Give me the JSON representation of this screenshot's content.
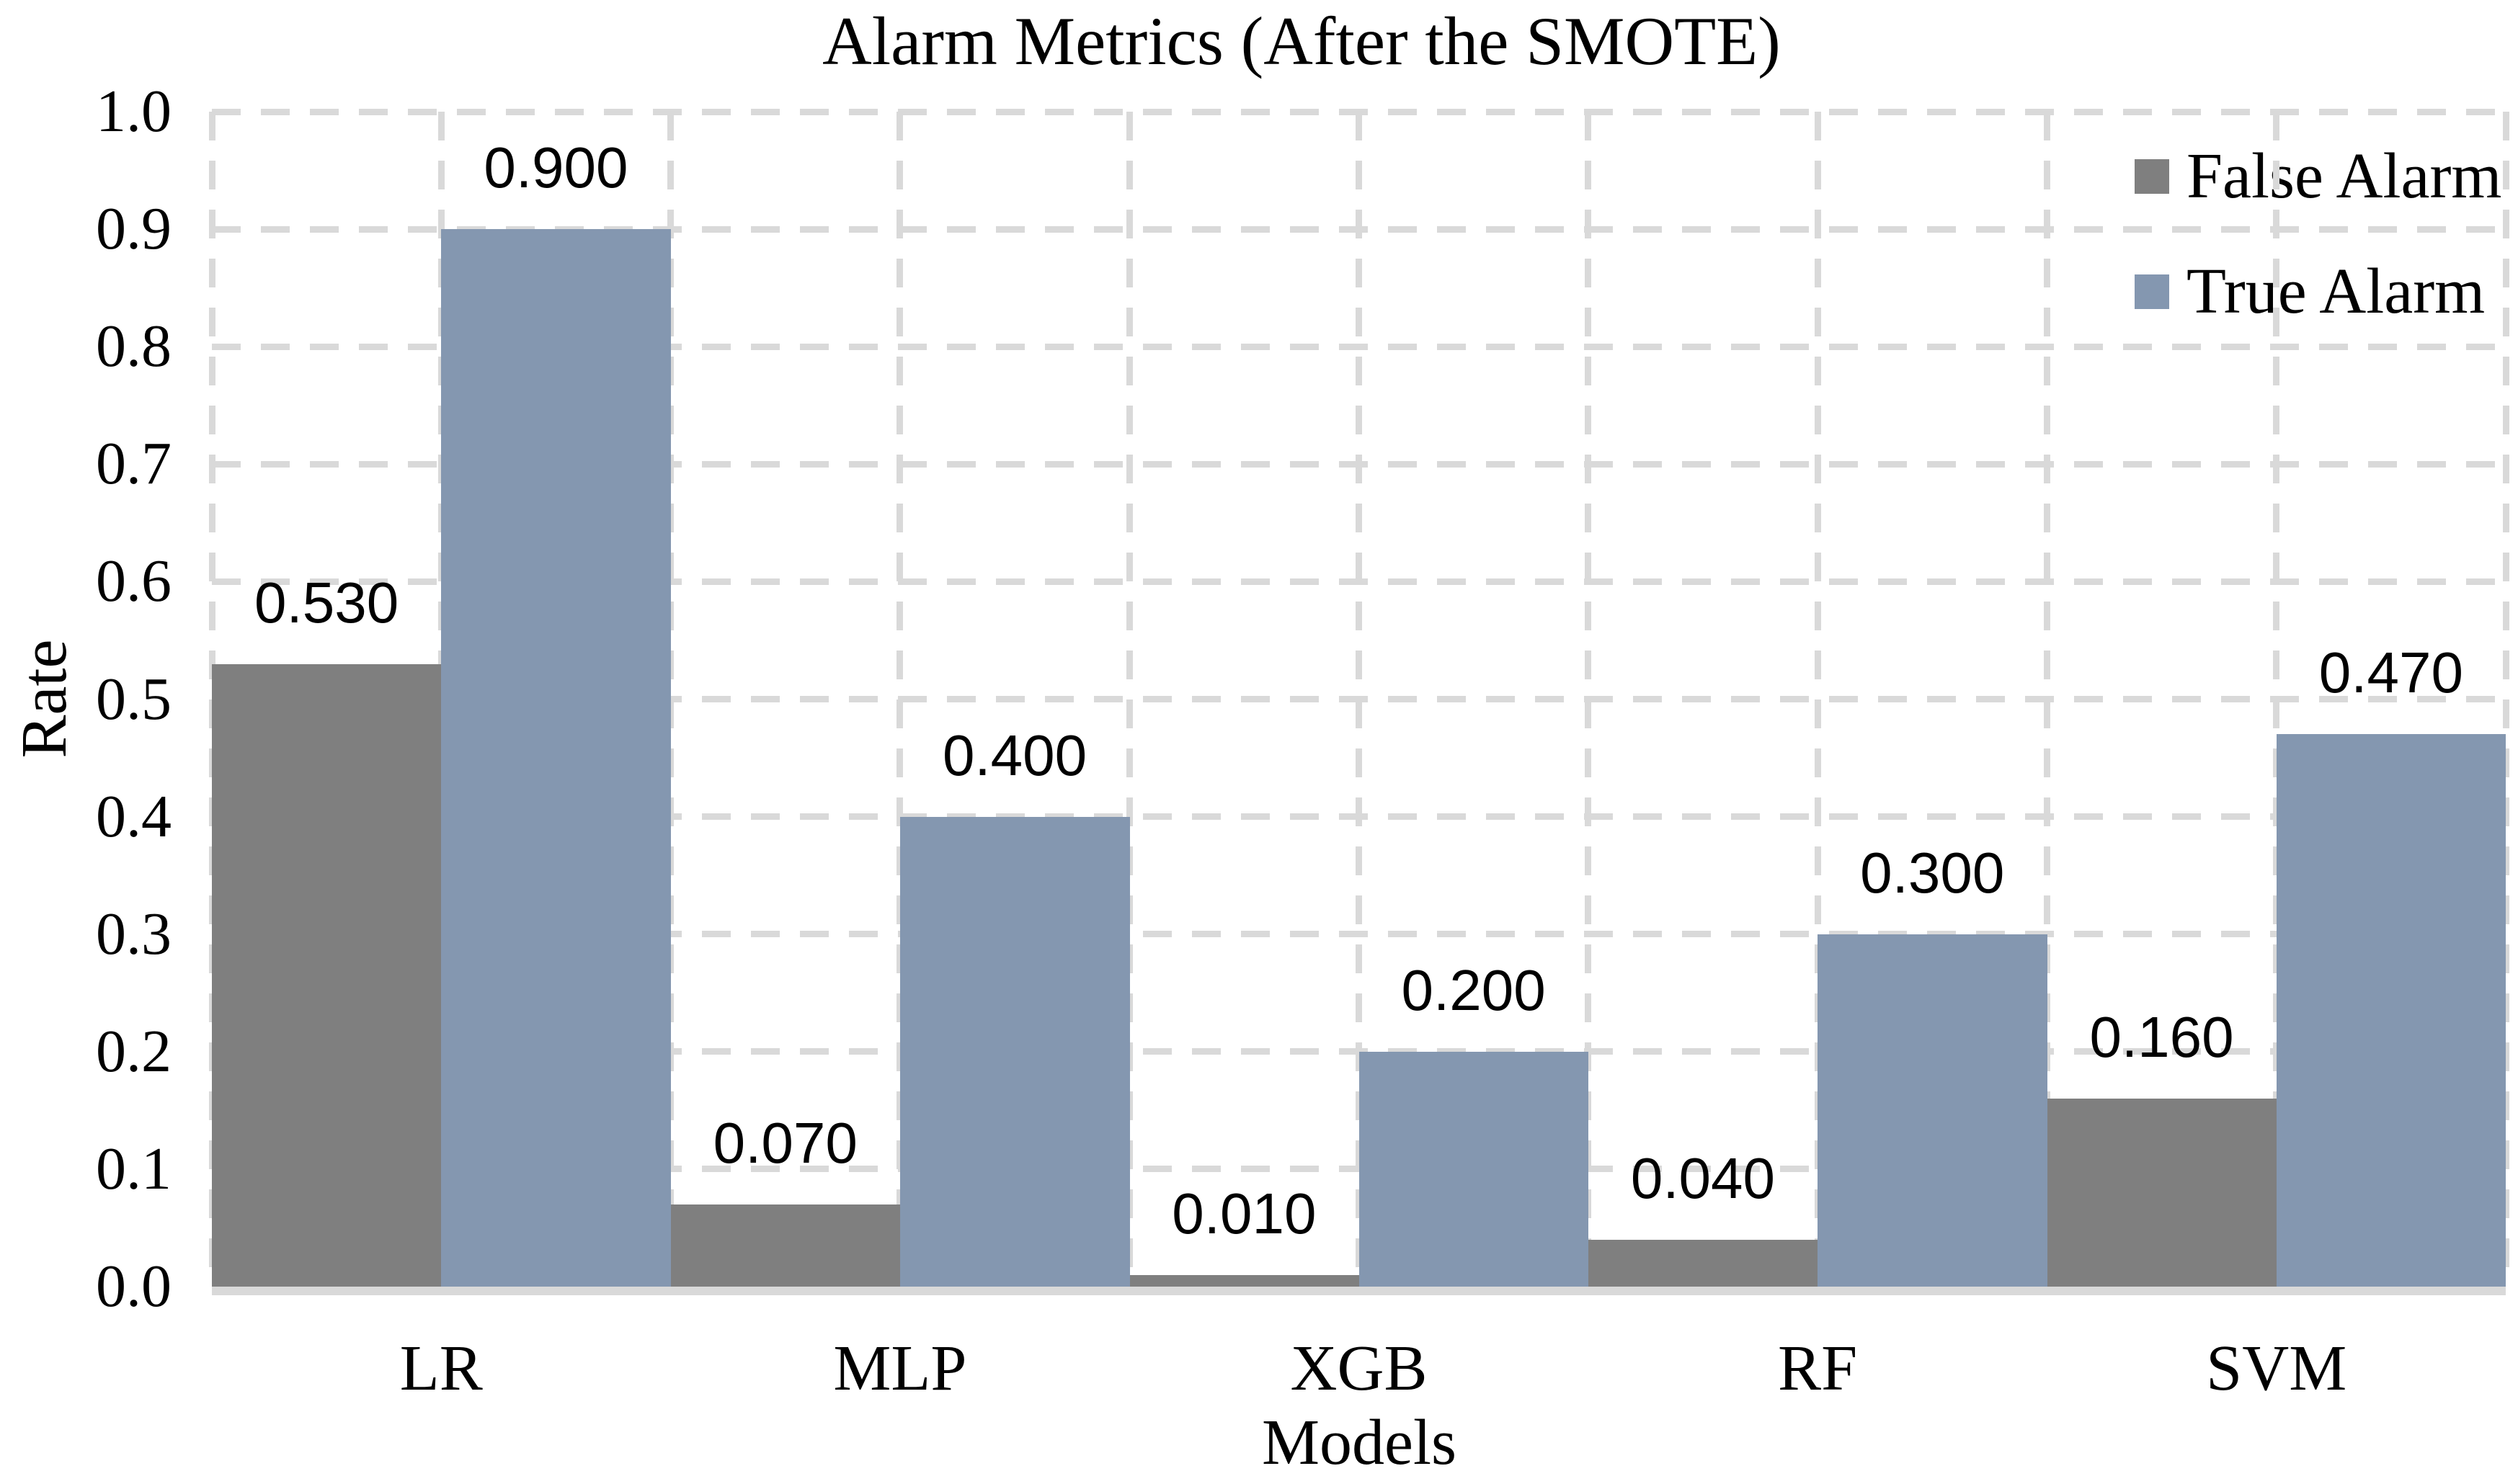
{
  "chart_data": {
    "type": "bar",
    "title": "Alarm Metrics (After the SMOTE)",
    "xlabel": "Models",
    "ylabel": "Rate",
    "categories": [
      "LR",
      "MLP",
      "XGB",
      "RF",
      "SVM"
    ],
    "series": [
      {
        "name": "False Alarm",
        "color": "#7F7F7F",
        "values": [
          0.53,
          0.07,
          0.01,
          0.04,
          0.16
        ],
        "labels": [
          "0.530",
          "0.070",
          "0.010",
          "0.040",
          "0.160"
        ]
      },
      {
        "name": "True Alarm",
        "color": "#8497B0",
        "values": [
          0.9,
          0.4,
          0.2,
          0.3,
          0.47
        ],
        "labels": [
          "0.900",
          "0.400",
          "0.200",
          "0.300",
          "0.470"
        ]
      }
    ],
    "ylim": [
      0.0,
      1.0
    ],
    "ytick_step": 0.1,
    "yticks": [
      "0.0",
      "0.1",
      "0.2",
      "0.3",
      "0.4",
      "0.5",
      "0.6",
      "0.7",
      "0.8",
      "0.9",
      "1.0"
    ],
    "grid": {
      "horizontal": true,
      "vertical": true,
      "style": "dashed",
      "color": "#D9D9D9"
    },
    "axis_line_color": "#D9D9D9",
    "legend": {
      "position": "top-right",
      "entries": [
        "False Alarm",
        "True Alarm"
      ]
    }
  }
}
